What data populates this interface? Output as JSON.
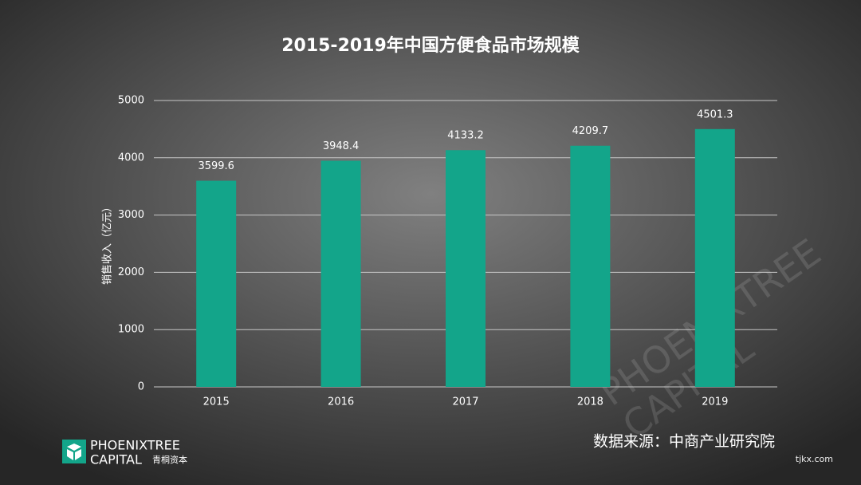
{
  "chart_data": {
    "type": "bar",
    "title": "2015-2019年中国方便食品市场规模",
    "y_label": "销售收入（亿元）",
    "categories": [
      "2015",
      "2016",
      "2017",
      "2018",
      "2019"
    ],
    "values": [
      3599.6,
      3948.4,
      4133.2,
      4209.7,
      4501.3
    ],
    "color": "#13a58a",
    "ylim": [
      0,
      5000
    ],
    "yticks": [
      0,
      1000,
      2000,
      3000,
      4000,
      5000
    ],
    "grid": true,
    "source": "数据来源：中商产业研究院"
  },
  "logo": {
    "line1": "PHOENIXTREE",
    "line2": "CAPITAL",
    "line2_cn": "青桐资本"
  },
  "watermark": "tjkx.com"
}
